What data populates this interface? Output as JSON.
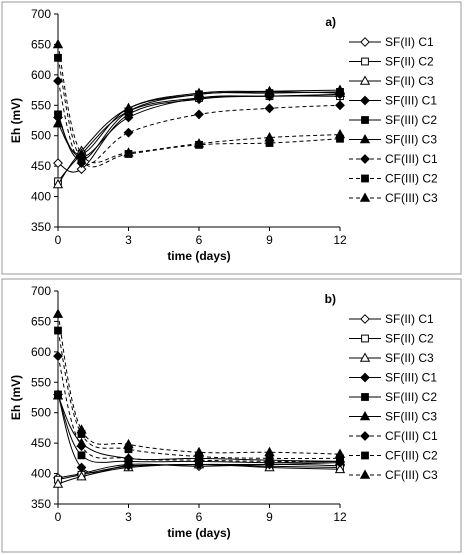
{
  "chart_data": [
    {
      "type": "line",
      "panel_label": "a)",
      "xlabel": "time (days)",
      "ylabel": "Eh (mV)",
      "xlim": [
        0,
        12
      ],
      "ylim": [
        350,
        700
      ],
      "xticks": [
        "0",
        "3",
        "6",
        "9",
        "12"
      ],
      "yticks": [
        "350",
        "400",
        "450",
        "500",
        "550",
        "600",
        "650",
        "700"
      ],
      "x": [
        0,
        1,
        3,
        6,
        9,
        12
      ],
      "series": [
        {
          "name": "SF(II) C1",
          "marker": "diamond-open",
          "dash": "solid",
          "values": [
            455,
            445,
            535,
            560,
            565,
            565
          ]
        },
        {
          "name": "SF(II) C2",
          "marker": "square-open",
          "dash": "solid",
          "values": [
            425,
            470,
            540,
            562,
            565,
            565
          ]
        },
        {
          "name": "SF(II) C3",
          "marker": "triangle-open",
          "dash": "solid",
          "values": [
            420,
            475,
            545,
            568,
            572,
            570
          ]
        },
        {
          "name": "SF(III) C1",
          "marker": "diamond",
          "dash": "solid",
          "values": [
            530,
            465,
            530,
            562,
            565,
            568
          ]
        },
        {
          "name": "SF(III) C2",
          "marker": "square",
          "dash": "solid",
          "values": [
            535,
            460,
            540,
            568,
            570,
            572
          ]
        },
        {
          "name": "SF(III) C3",
          "marker": "triangle",
          "dash": "solid",
          "values": [
            520,
            470,
            545,
            570,
            573,
            575
          ]
        },
        {
          "name": "CF(III) C1",
          "marker": "diamond",
          "dash": "dashed",
          "values": [
            590,
            455,
            505,
            535,
            545,
            550
          ]
        },
        {
          "name": "CF(III) C2",
          "marker": "square",
          "dash": "dashed",
          "values": [
            628,
            460,
            470,
            485,
            488,
            495
          ]
        },
        {
          "name": "CF(III) C3",
          "marker": "triangle",
          "dash": "dashed",
          "values": [
            650,
            470,
            472,
            487,
            497,
            502
          ]
        }
      ]
    },
    {
      "type": "line",
      "panel_label": "b)",
      "xlabel": "time (days)",
      "ylabel": "Eh (mV)",
      "xlim": [
        0,
        12
      ],
      "ylim": [
        350,
        700
      ],
      "xticks": [
        "0",
        "3",
        "6",
        "9",
        "12"
      ],
      "yticks": [
        "350",
        "400",
        "450",
        "500",
        "550",
        "600",
        "650",
        "700"
      ],
      "x": [
        0,
        1,
        3,
        6,
        9,
        12
      ],
      "series": [
        {
          "name": "SF(II) C1",
          "marker": "diamond-open",
          "dash": "solid",
          "values": [
            393,
            400,
            415,
            412,
            415,
            413
          ]
        },
        {
          "name": "SF(II) C2",
          "marker": "square-open",
          "dash": "solid",
          "values": [
            390,
            398,
            412,
            415,
            412,
            410
          ]
        },
        {
          "name": "SF(II) C3",
          "marker": "triangle-open",
          "dash": "solid",
          "values": [
            383,
            395,
            410,
            415,
            410,
            407
          ]
        },
        {
          "name": "SF(III) C1",
          "marker": "diamond",
          "dash": "solid",
          "values": [
            530,
            410,
            413,
            415,
            415,
            418
          ]
        },
        {
          "name": "SF(III) C2",
          "marker": "square",
          "dash": "solid",
          "values": [
            530,
            430,
            420,
            420,
            418,
            420
          ]
        },
        {
          "name": "SF(III) C3",
          "marker": "triangle",
          "dash": "solid",
          "values": [
            528,
            450,
            425,
            425,
            422,
            420
          ]
        },
        {
          "name": "CF(III) C1",
          "marker": "diamond",
          "dash": "dashed",
          "values": [
            593,
            445,
            425,
            422,
            420,
            420
          ]
        },
        {
          "name": "CF(III) C2",
          "marker": "square",
          "dash": "dashed",
          "values": [
            635,
            465,
            440,
            428,
            425,
            425
          ]
        },
        {
          "name": "CF(III) C3",
          "marker": "triangle",
          "dash": "dashed",
          "values": [
            662,
            472,
            448,
            435,
            435,
            432
          ]
        }
      ]
    }
  ]
}
